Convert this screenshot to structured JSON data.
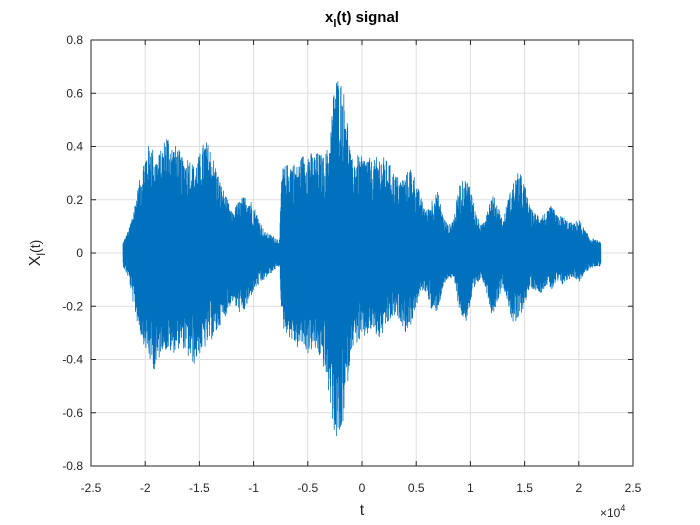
{
  "chart_data": {
    "type": "line",
    "title": {
      "main": "x",
      "sub": "l",
      "rest": "(t) signal"
    },
    "xlabel": "t",
    "ylabel": {
      "main": "X",
      "sub": "l",
      "rest": "(t)"
    },
    "xlim": [
      -25000,
      25000
    ],
    "ylim": [
      -0.8,
      0.8
    ],
    "xticks": [
      -25000,
      -20000,
      -15000,
      -10000,
      -5000,
      0,
      5000,
      10000,
      15000,
      20000,
      25000
    ],
    "xtick_labels": [
      "-2.5",
      "-2",
      "-1.5",
      "-1",
      "-0.5",
      "0",
      "0.5",
      "1",
      "1.5",
      "2",
      "2.5"
    ],
    "yticks": [
      -0.8,
      -0.6,
      -0.4,
      -0.2,
      0,
      0.2,
      0.4,
      0.6,
      0.8
    ],
    "ytick_labels": [
      "-0.8",
      "-0.6",
      "-0.4",
      "-0.2",
      "0",
      "0.2",
      "0.4",
      "0.6",
      "0.8"
    ],
    "x_exponent": {
      "base": "×10",
      "power": "4"
    },
    "grid": true,
    "box": true,
    "series_color": "#0072BD",
    "series": [
      {
        "x_range": [
          -22050,
          22050
        ],
        "upper_envelope": [
          [
            -22050,
            0.04
          ],
          [
            -21500,
            0.09
          ],
          [
            -21000,
            0.18
          ],
          [
            -20500,
            0.28
          ],
          [
            -20000,
            0.38
          ],
          [
            -19500,
            0.42
          ],
          [
            -19000,
            0.36
          ],
          [
            -18500,
            0.39
          ],
          [
            -18000,
            0.46
          ],
          [
            -17500,
            0.41
          ],
          [
            -17000,
            0.4
          ],
          [
            -16500,
            0.35
          ],
          [
            -16000,
            0.37
          ],
          [
            -15500,
            0.33
          ],
          [
            -15000,
            0.37
          ],
          [
            -14500,
            0.43
          ],
          [
            -14000,
            0.4
          ],
          [
            -13500,
            0.33
          ],
          [
            -13000,
            0.26
          ],
          [
            -12500,
            0.21
          ],
          [
            -12000,
            0.15
          ],
          [
            -11500,
            0.19
          ],
          [
            -11000,
            0.21
          ],
          [
            -10500,
            0.22
          ],
          [
            -10000,
            0.18
          ],
          [
            -9500,
            0.13
          ],
          [
            -9000,
            0.08
          ],
          [
            -8500,
            0.07
          ],
          [
            -8000,
            0.06
          ],
          [
            -7600,
            0.05
          ],
          [
            -7400,
            0.32
          ],
          [
            -7000,
            0.33
          ],
          [
            -6500,
            0.35
          ],
          [
            -6000,
            0.33
          ],
          [
            -5500,
            0.37
          ],
          [
            -5000,
            0.39
          ],
          [
            -4500,
            0.37
          ],
          [
            -4000,
            0.38
          ],
          [
            -3500,
            0.36
          ],
          [
            -3000,
            0.42
          ],
          [
            -2500,
            0.67
          ],
          [
            -2000,
            0.66
          ],
          [
            -1500,
            0.58
          ],
          [
            -1000,
            0.35
          ],
          [
            -500,
            0.37
          ],
          [
            0,
            0.36
          ],
          [
            500,
            0.37
          ],
          [
            1000,
            0.34
          ],
          [
            1500,
            0.37
          ],
          [
            2000,
            0.36
          ],
          [
            2500,
            0.34
          ],
          [
            3000,
            0.3
          ],
          [
            3500,
            0.28
          ],
          [
            4000,
            0.29
          ],
          [
            4500,
            0.33
          ],
          [
            5000,
            0.27
          ],
          [
            5500,
            0.2
          ],
          [
            6000,
            0.16
          ],
          [
            6500,
            0.21
          ],
          [
            7000,
            0.23
          ],
          [
            7500,
            0.14
          ],
          [
            8000,
            0.1
          ],
          [
            8500,
            0.14
          ],
          [
            9000,
            0.26
          ],
          [
            9500,
            0.28
          ],
          [
            10000,
            0.26
          ],
          [
            10500,
            0.15
          ],
          [
            11000,
            0.1
          ],
          [
            11500,
            0.17
          ],
          [
            12000,
            0.22
          ],
          [
            12500,
            0.19
          ],
          [
            13000,
            0.12
          ],
          [
            13500,
            0.21
          ],
          [
            14000,
            0.27
          ],
          [
            14500,
            0.31
          ],
          [
            15000,
            0.26
          ],
          [
            15500,
            0.17
          ],
          [
            16000,
            0.15
          ],
          [
            16500,
            0.15
          ],
          [
            17000,
            0.15
          ],
          [
            17500,
            0.18
          ],
          [
            18000,
            0.14
          ],
          [
            18500,
            0.14
          ],
          [
            19000,
            0.12
          ],
          [
            19500,
            0.11
          ],
          [
            20000,
            0.13
          ],
          [
            20500,
            0.09
          ],
          [
            21000,
            0.06
          ],
          [
            21500,
            0.05
          ],
          [
            22050,
            0.04
          ]
        ],
        "lower_envelope": [
          [
            -22050,
            -0.05
          ],
          [
            -21500,
            -0.1
          ],
          [
            -21000,
            -0.22
          ],
          [
            -20500,
            -0.3
          ],
          [
            -20000,
            -0.36
          ],
          [
            -19500,
            -0.42
          ],
          [
            -19000,
            -0.45
          ],
          [
            -18500,
            -0.36
          ],
          [
            -18000,
            -0.37
          ],
          [
            -17500,
            -0.38
          ],
          [
            -17000,
            -0.36
          ],
          [
            -16500,
            -0.36
          ],
          [
            -16000,
            -0.4
          ],
          [
            -15500,
            -0.42
          ],
          [
            -15000,
            -0.38
          ],
          [
            -14500,
            -0.36
          ],
          [
            -14000,
            -0.33
          ],
          [
            -13500,
            -0.31
          ],
          [
            -13000,
            -0.26
          ],
          [
            -12500,
            -0.23
          ],
          [
            -12000,
            -0.18
          ],
          [
            -11500,
            -0.22
          ],
          [
            -11000,
            -0.23
          ],
          [
            -10500,
            -0.19
          ],
          [
            -10000,
            -0.14
          ],
          [
            -9500,
            -0.12
          ],
          [
            -9000,
            -0.1
          ],
          [
            -8500,
            -0.08
          ],
          [
            -8000,
            -0.06
          ],
          [
            -7600,
            -0.05
          ],
          [
            -7400,
            -0.28
          ],
          [
            -7000,
            -0.3
          ],
          [
            -6500,
            -0.33
          ],
          [
            -6000,
            -0.36
          ],
          [
            -5500,
            -0.35
          ],
          [
            -5000,
            -0.38
          ],
          [
            -4500,
            -0.36
          ],
          [
            -4000,
            -0.39
          ],
          [
            -3500,
            -0.44
          ],
          [
            -3000,
            -0.55
          ],
          [
            -2500,
            -0.7
          ],
          [
            -2000,
            -0.72
          ],
          [
            -1500,
            -0.55
          ],
          [
            -1000,
            -0.36
          ],
          [
            -500,
            -0.34
          ],
          [
            0,
            -0.33
          ],
          [
            500,
            -0.31
          ],
          [
            1000,
            -0.29
          ],
          [
            1500,
            -0.33
          ],
          [
            2000,
            -0.3
          ],
          [
            2500,
            -0.26
          ],
          [
            3000,
            -0.24
          ],
          [
            3500,
            -0.25
          ],
          [
            4000,
            -0.3
          ],
          [
            4500,
            -0.27
          ],
          [
            5000,
            -0.2
          ],
          [
            5500,
            -0.14
          ],
          [
            6000,
            -0.15
          ],
          [
            6500,
            -0.24
          ],
          [
            7000,
            -0.21
          ],
          [
            7500,
            -0.13
          ],
          [
            8000,
            -0.09
          ],
          [
            8500,
            -0.11
          ],
          [
            9000,
            -0.22
          ],
          [
            9500,
            -0.27
          ],
          [
            10000,
            -0.2
          ],
          [
            10500,
            -0.13
          ],
          [
            11000,
            -0.09
          ],
          [
            11500,
            -0.15
          ],
          [
            12000,
            -0.24
          ],
          [
            12500,
            -0.18
          ],
          [
            13000,
            -0.12
          ],
          [
            13500,
            -0.2
          ],
          [
            14000,
            -0.28
          ],
          [
            14500,
            -0.25
          ],
          [
            15000,
            -0.19
          ],
          [
            15500,
            -0.13
          ],
          [
            16000,
            -0.14
          ],
          [
            16500,
            -0.15
          ],
          [
            17000,
            -0.12
          ],
          [
            17500,
            -0.14
          ],
          [
            18000,
            -0.11
          ],
          [
            18500,
            -0.12
          ],
          [
            19000,
            -0.1
          ],
          [
            19500,
            -0.09
          ],
          [
            20000,
            -0.11
          ],
          [
            20500,
            -0.08
          ],
          [
            21000,
            -0.06
          ],
          [
            21500,
            -0.05
          ],
          [
            22050,
            -0.05
          ]
        ]
      }
    ]
  }
}
